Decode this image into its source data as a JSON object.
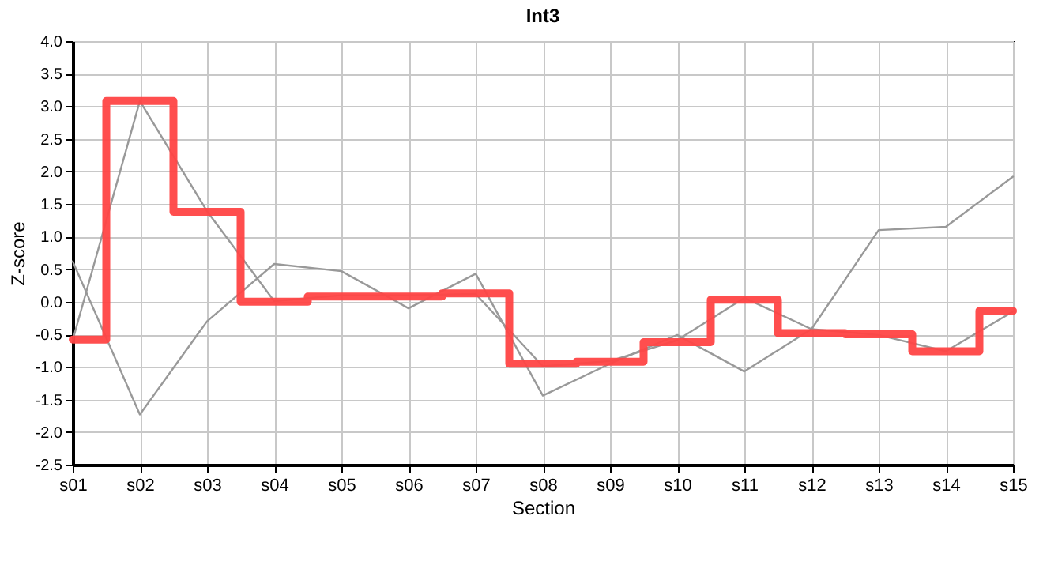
{
  "chart_data": {
    "type": "line",
    "title": "Int3",
    "xlabel": "Section",
    "ylabel": "Z-score",
    "categories": [
      "s01",
      "s02",
      "s03",
      "s04",
      "s05",
      "s06",
      "s07",
      "s08",
      "s09",
      "s10",
      "s11",
      "s12",
      "s13",
      "s14",
      "s15"
    ],
    "series": [
      {
        "type": "line",
        "color": "#999999",
        "values": [
          0.62,
          -1.73,
          -0.3,
          0.58,
          0.47,
          -0.1,
          0.43,
          -1.44,
          -0.95,
          -0.51,
          -1.07,
          -0.42,
          1.1,
          1.15,
          1.92
        ]
      },
      {
        "type": "line",
        "color": "#999999",
        "values": [
          -0.59,
          3.08,
          1.39,
          0.01,
          0.1,
          0.1,
          0.12,
          -0.99,
          -0.91,
          -0.59,
          0.06,
          -0.42,
          -0.51,
          -0.76,
          -0.15
        ]
      },
      {
        "type": "step",
        "color": "#ff4444",
        "values": [
          -0.58,
          3.08,
          1.38,
          0.0,
          0.08,
          0.08,
          0.13,
          -0.95,
          -0.92,
          -0.62,
          0.03,
          -0.48,
          -0.5,
          -0.76,
          -0.14
        ]
      }
    ],
    "ylim": [
      -2.5,
      4.0
    ],
    "yticks": [
      {
        "value": -2.5,
        "label": "-2.5"
      },
      {
        "value": -2,
        "label": "-2.0"
      },
      {
        "value": -1.5,
        "label": "-1.5"
      },
      {
        "value": -1,
        "label": "-1.0"
      },
      {
        "value": -0.5,
        "label": "-0.5"
      },
      {
        "value": 0,
        "label": "0.0"
      },
      {
        "value": 0.5,
        "label": "0.5"
      },
      {
        "value": 1,
        "label": "1.0"
      },
      {
        "value": 1.5,
        "label": "1.5"
      },
      {
        "value": 2,
        "label": "2.0"
      },
      {
        "value": 2.5,
        "label": "2.5"
      },
      {
        "value": 3,
        "label": "3.0"
      },
      {
        "value": 3.5,
        "label": "3.5"
      },
      {
        "value": 4,
        "label": "4.0"
      }
    ],
    "grid": true,
    "marker": "none"
  }
}
